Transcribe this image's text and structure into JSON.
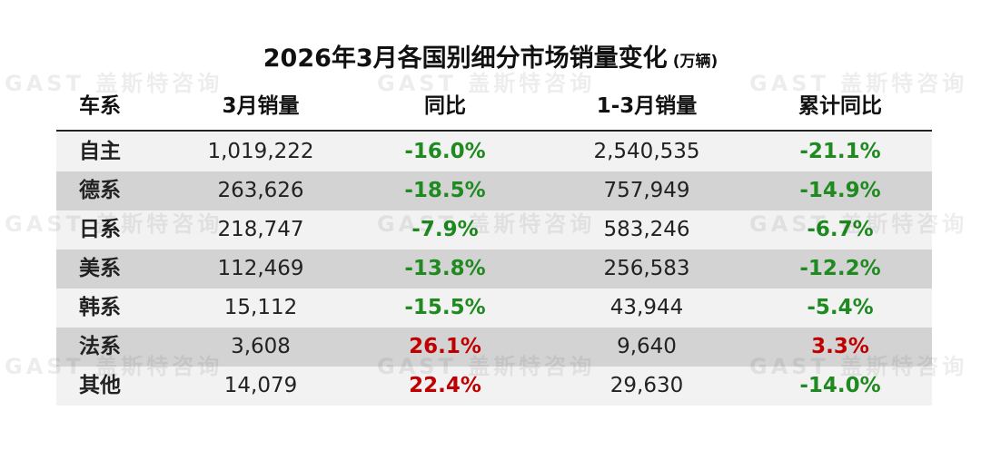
{
  "header": {
    "title": "2026年3月各国别细分市场销量变化",
    "unit": "(万辆)",
    "watermark": "GAST 盖斯特咨询"
  },
  "table": {
    "columns": [
      "车系",
      "3月销量",
      "同比",
      "1-3月销量",
      "累计同比"
    ],
    "rows": [
      [
        "自主",
        "1,019,222",
        "-16.0%",
        "2,540,535",
        "-21.1%"
      ],
      [
        "德系",
        "263,626",
        "-18.5%",
        "757,949",
        "-14.9%"
      ],
      [
        "日系",
        "218,747",
        "-7.9%",
        "583,246",
        "-6.7%"
      ],
      [
        "美系",
        "112,469",
        "-13.8%",
        "256,583",
        "-12.2%"
      ],
      [
        "韩系",
        "15,112",
        "-15.5%",
        "43,944",
        "-5.4%"
      ],
      [
        "法系",
        "3,608",
        "26.1%",
        "9,640",
        "3.3%"
      ],
      [
        "其他",
        "14,079",
        "22.4%",
        "29,630",
        "-14.0%"
      ]
    ]
  }
}
